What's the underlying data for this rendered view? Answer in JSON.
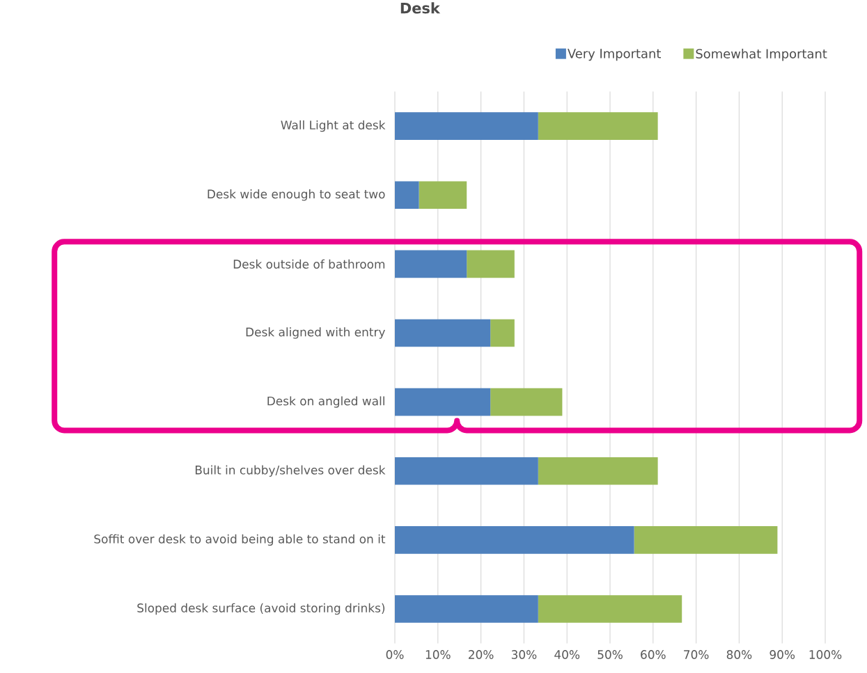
{
  "chart_data": {
    "type": "bar",
    "orientation": "horizontal",
    "stacked": true,
    "title": "Desk",
    "categories": [
      "Wall Light at desk",
      "Desk wide enough to seat two",
      "Desk outside of bathroom",
      "Desk aligned with entry",
      "Desk on angled wall",
      "Built in cubby/shelves over desk",
      "Soffit over desk to avoid being able to stand on it",
      "Sloped desk surface (avoid storing drinks)"
    ],
    "series": [
      {
        "name": "Very Important",
        "color": "#4f81bd",
        "values": [
          33.3,
          5.6,
          16.7,
          22.2,
          22.2,
          33.3,
          55.6,
          33.3
        ]
      },
      {
        "name": "Somewhat Important",
        "color": "#9bbb59",
        "values": [
          27.8,
          11.1,
          11.1,
          5.6,
          16.7,
          27.8,
          33.3,
          33.4
        ]
      }
    ],
    "xlim": [
      0,
      100
    ],
    "xticks": [
      {
        "value": 0,
        "label": "0%"
      },
      {
        "value": 10,
        "label": "10%"
      },
      {
        "value": 20,
        "label": "20%"
      },
      {
        "value": 30,
        "label": "30%"
      },
      {
        "value": 40,
        "label": "40%"
      },
      {
        "value": 50,
        "label": "50%"
      },
      {
        "value": 60,
        "label": "60%"
      },
      {
        "value": 70,
        "label": "70%"
      },
      {
        "value": 80,
        "label": "80%"
      },
      {
        "value": 90,
        "label": "90%"
      },
      {
        "value": 100,
        "label": "100%"
      }
    ],
    "grid": "x",
    "legend": "top right"
  }
}
